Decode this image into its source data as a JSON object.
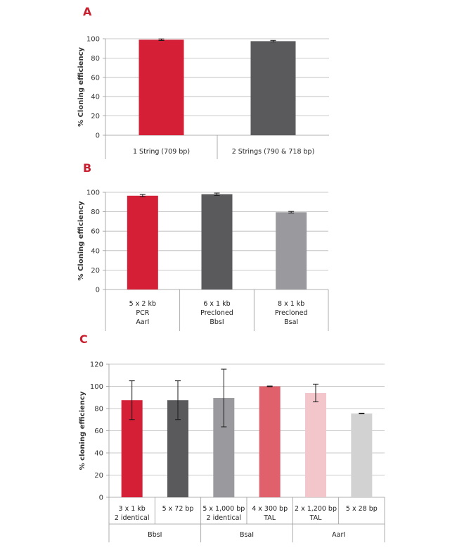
{
  "chart_data": [
    {
      "panel": "A",
      "type": "bar",
      "ylabel": "% Cloning efficiency",
      "ylim": [
        0,
        100
      ],
      "yticks": [
        "0",
        "20",
        "40",
        "60",
        "80",
        "100"
      ],
      "grid": true,
      "categories": [
        [
          "1 String (709 bp)"
        ],
        [
          "2 Strings (790 & 718 bp)"
        ]
      ],
      "values": [
        99,
        97.5
      ],
      "errors": [
        0.8,
        0.8
      ],
      "colors": [
        "#d41f36",
        "#5a5a5d"
      ]
    },
    {
      "panel": "B",
      "type": "bar",
      "ylabel": "% Cloning efficiency",
      "ylim": [
        0,
        100
      ],
      "yticks": [
        "0",
        "20",
        "40",
        "60",
        "80",
        "100"
      ],
      "grid": true,
      "categories": [
        [
          "5 x 2 kb",
          "PCR",
          "AarI"
        ],
        [
          "6 x 1 kb",
          "Precloned",
          "BbsI"
        ],
        [
          "8 x 1 kb",
          "Precloned",
          "BsaI"
        ]
      ],
      "values": [
        96.5,
        98,
        79.5
      ],
      "errors": [
        1.2,
        1.2,
        0.8
      ],
      "colors": [
        "#d41f36",
        "#5a5a5d",
        "#9a9a9e"
      ]
    },
    {
      "panel": "C",
      "type": "bar",
      "ylabel": "% cloning efficiency",
      "ylim": [
        0,
        120
      ],
      "yticks": [
        "0",
        "20",
        "40",
        "60",
        "80",
        "100",
        "120"
      ],
      "grid": true,
      "categories": [
        [
          "3 x 1 kb",
          "2 identical"
        ],
        [
          "5 x 72 bp"
        ],
        [
          "5 x 1,000 bp",
          "2 identical"
        ],
        [
          "4 x 300 bp",
          "TAL"
        ],
        [
          "2 x 1,200 bp",
          "TAL"
        ],
        [
          "5 x 28 bp"
        ]
      ],
      "values": [
        87.5,
        87.5,
        89.5,
        100,
        94,
        75.5
      ],
      "errors": [
        17.5,
        17.5,
        26,
        0.3,
        8,
        0.3
      ],
      "colors": [
        "#d41f36",
        "#5a5a5d",
        "#9a9a9e",
        "#e0606c",
        "#f2c6cb",
        "#d2d2d2"
      ],
      "groups": [
        {
          "label": "BbsI",
          "start": 0,
          "end": 1
        },
        {
          "label": "BsaI",
          "start": 2,
          "end": 3
        },
        {
          "label": "AarI",
          "start": 4,
          "end": 5
        }
      ]
    }
  ]
}
